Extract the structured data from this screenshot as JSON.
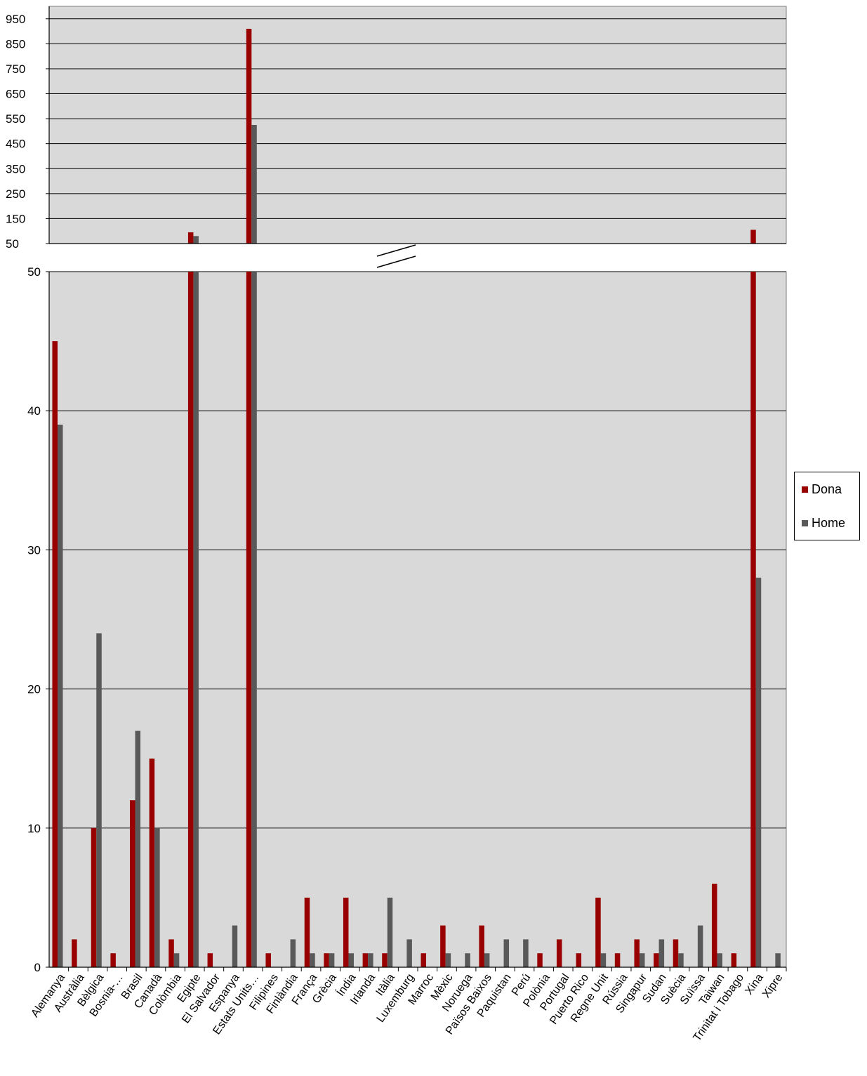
{
  "chart_data": {
    "type": "bar",
    "title": "",
    "xlabel": "",
    "ylabel": "",
    "broken_axis": true,
    "upper_ylim": [
      50,
      1000
    ],
    "upper_ticks": [
      "50",
      "150",
      "250",
      "350",
      "450",
      "550",
      "650",
      "750",
      "850",
      "950"
    ],
    "lower_ylim": [
      0,
      50
    ],
    "lower_ticks": [
      "0",
      "10",
      "20",
      "30",
      "40",
      "50"
    ],
    "grid": true,
    "legend_position": "right",
    "categories": [
      "Alemanya",
      "Austràlia",
      "Bèlgica",
      "Bosnia-…",
      "Brasil",
      "Canadà",
      "Colòmbia",
      "Egipte",
      "El Salvador",
      "Espanya",
      "Estats Units…",
      "Filipines",
      "Finlàndia",
      "França",
      "Grècia",
      "Índia",
      "Irlanda",
      "Itàlia",
      "Luxemburg",
      "Marroc",
      "Mèxic",
      "Noruega",
      "Països Baixos",
      "Paquistan",
      "Perú",
      "Polònia",
      "Portugal",
      "Puerto Rico",
      "Regne Unit",
      "Rússia",
      "Singapur",
      "Sudan",
      "Suècia",
      "Suïssa",
      "Taiwan",
      "Trinitat i Tobago",
      "Xina",
      "Xipre"
    ],
    "series": [
      {
        "name": "Dona",
        "color": "#990000",
        "values": [
          45,
          2,
          10,
          1,
          12,
          15,
          2,
          95,
          1,
          0,
          910,
          1,
          0,
          5,
          1,
          5,
          1,
          1,
          0,
          1,
          3,
          0,
          3,
          0,
          0,
          1,
          2,
          1,
          5,
          1,
          2,
          1,
          2,
          0,
          6,
          1,
          105,
          0
        ]
      },
      {
        "name": "Home",
        "color": "#595959",
        "values": [
          39,
          0,
          24,
          0,
          17,
          10,
          1,
          80,
          0,
          3,
          525,
          0,
          2,
          1,
          1,
          1,
          1,
          5,
          2,
          0,
          1,
          1,
          1,
          2,
          2,
          0,
          0,
          0,
          1,
          0,
          1,
          2,
          1,
          3,
          1,
          0,
          28,
          1
        ]
      }
    ]
  }
}
